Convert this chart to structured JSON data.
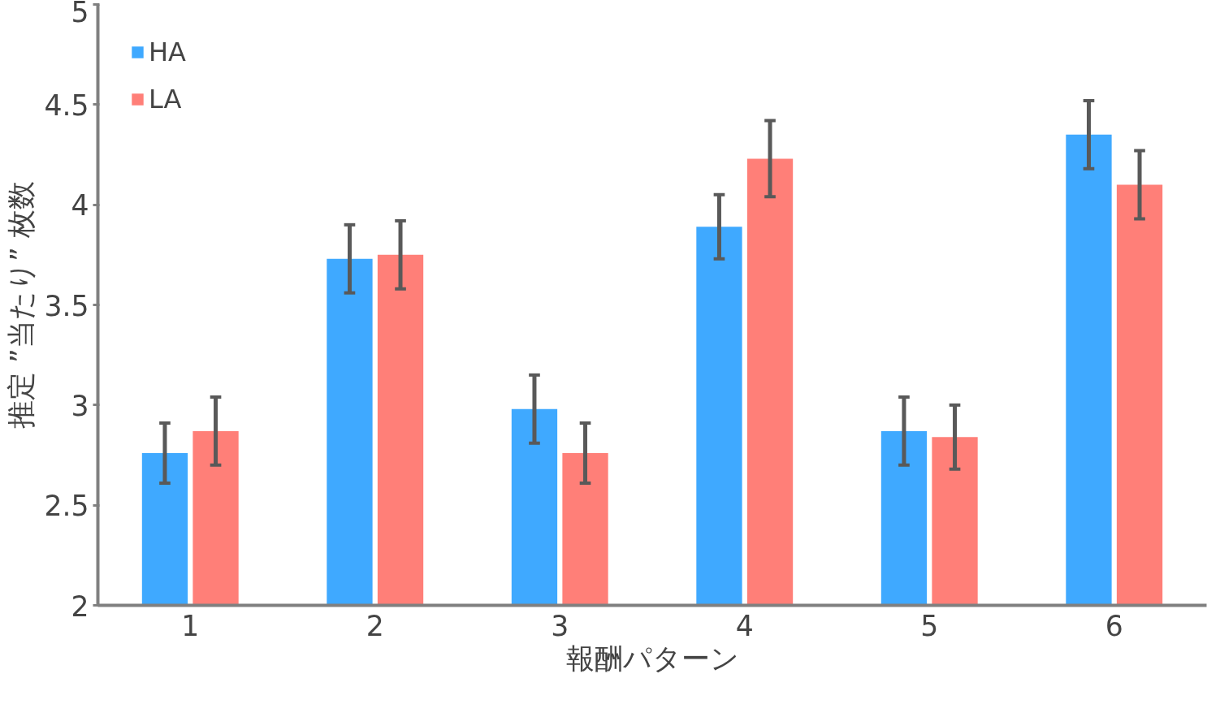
{
  "chart_data": {
    "type": "bar",
    "xlabel": "報酬パターン",
    "ylabel": "推定 ”当たり” 枚数",
    "categories": [
      "1",
      "2",
      "3",
      "4",
      "5",
      "6"
    ],
    "series": [
      {
        "name": "HA",
        "color": "#3fa9ff",
        "values": [
          2.76,
          3.73,
          2.98,
          3.89,
          2.87,
          4.35
        ],
        "errors": [
          0.15,
          0.17,
          0.17,
          0.16,
          0.17,
          0.17
        ]
      },
      {
        "name": "LA",
        "color": "#ff7f78",
        "values": [
          2.87,
          3.75,
          2.76,
          4.23,
          2.84,
          4.1
        ],
        "errors": [
          0.17,
          0.17,
          0.15,
          0.19,
          0.16,
          0.17
        ]
      }
    ],
    "ylim": [
      2,
      5
    ],
    "yticks": [
      2,
      2.5,
      3,
      3.5,
      4,
      4.5,
      5
    ],
    "grid": false,
    "legend": "top left"
  }
}
